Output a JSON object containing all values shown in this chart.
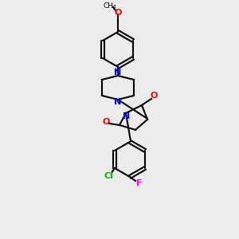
{
  "background_color": "#ececec",
  "bond_color": "#000000",
  "nitrogen_color": "#0000ff",
  "oxygen_color": "#ff0000",
  "chlorine_color": "#00bb00",
  "fluorine_color": "#ff00ff",
  "figsize": [
    3.0,
    3.0
  ],
  "dpi": 100,
  "lw": 1.5,
  "lw2": 2.5,
  "methoxy_label": "O",
  "methoxy_ch3": "CH₃",
  "N_label": "N",
  "O_label": "O",
  "Cl_label": "Cl",
  "F_label": "F"
}
